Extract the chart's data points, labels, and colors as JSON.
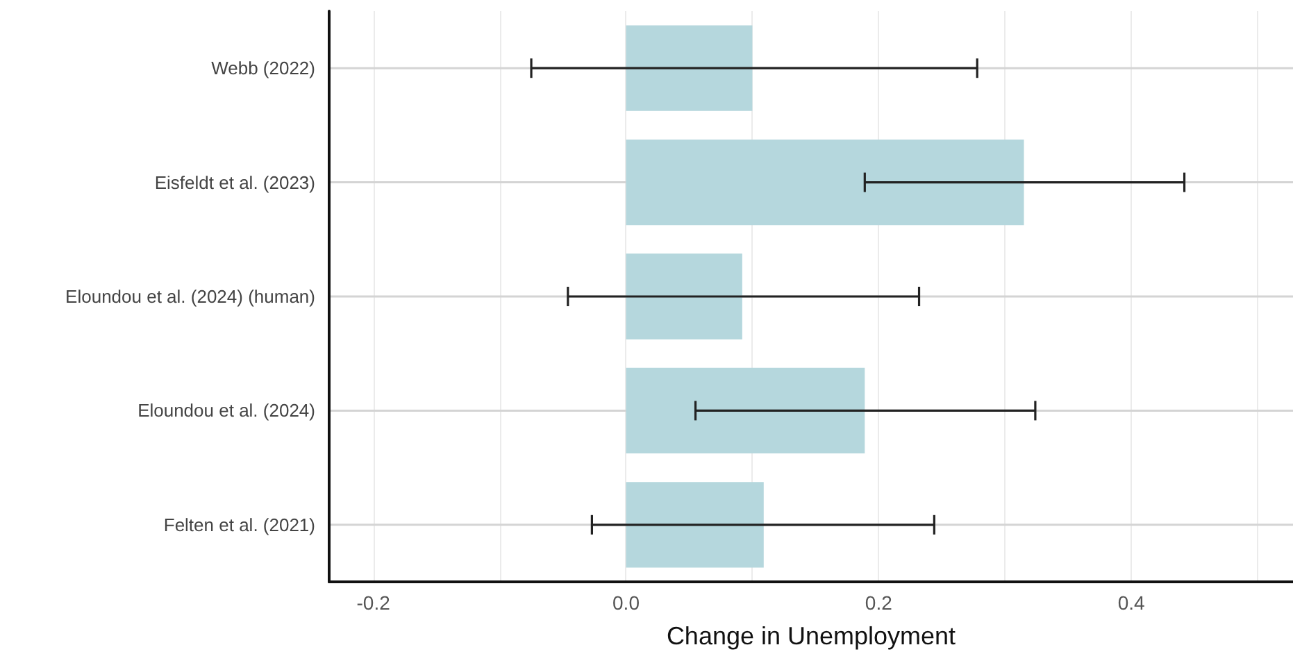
{
  "chart_data": {
    "type": "bar",
    "orientation": "horizontal",
    "xlabel": "Change in Unemployment",
    "categories": [
      "Webb (2022)",
      "Eisfeldt et al. (2023)",
      "Eloundou et al. (2024) (human)",
      "Eloundou et al. (2024)",
      "Felten et al. (2021)"
    ],
    "values": [
      0.1,
      0.315,
      0.092,
      0.189,
      0.109
    ],
    "errors": [
      [
        -0.075,
        0.278
      ],
      [
        0.189,
        0.442
      ],
      [
        -0.046,
        0.232
      ],
      [
        0.055,
        0.324
      ],
      [
        -0.027,
        0.244
      ]
    ],
    "color": "#b5d7dd",
    "xlim": [
      -0.235,
      0.528
    ],
    "xticks": [
      {
        "value": -0.2,
        "label": "-0.2"
      },
      {
        "value": -0.1,
        "label": null
      },
      {
        "value": 0,
        "label": "0.0"
      },
      {
        "value": 0.1,
        "label": null
      },
      {
        "value": 0.2,
        "label": "0.2"
      },
      {
        "value": 0.3,
        "label": null
      },
      {
        "value": 0.4,
        "label": "0.4"
      },
      {
        "value": 0.5,
        "label": null
      }
    ],
    "grid": true
  }
}
